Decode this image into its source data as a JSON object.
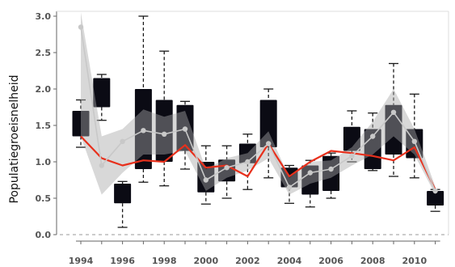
{
  "chart_data": {
    "type": "boxplot",
    "ylabel": "Populatiegroeisnelheid",
    "xlabel": "",
    "title": "",
    "ylim": [
      0,
      3.0
    ],
    "yticks": [
      "0.0",
      "0.5",
      "1.0",
      "1.5",
      "2.0",
      "2.5",
      "3.0"
    ],
    "xticks": [
      "1994",
      "1996",
      "1998",
      "2000",
      "2002",
      "2004",
      "2006",
      "2008",
      "2010"
    ],
    "grid": false,
    "years": [
      1994,
      1995,
      1996,
      1997,
      1998,
      1999,
      2000,
      2001,
      2002,
      2003,
      2004,
      2005,
      2006,
      2007,
      2008,
      2009,
      2010,
      2011
    ],
    "boxes": [
      {
        "year": 1994,
        "whisker_low": 1.2,
        "q1": 1.35,
        "q3": 1.7,
        "whisker_high": 1.85
      },
      {
        "year": 1995,
        "whisker_low": 1.57,
        "q1": 1.75,
        "q3": 2.15,
        "whisker_high": 2.2
      },
      {
        "year": 1996,
        "whisker_low": 0.1,
        "q1": 0.43,
        "q3": 0.7,
        "whisker_high": 0.73
      },
      {
        "year": 1997,
        "whisker_low": 0.72,
        "q1": 0.9,
        "q3": 2.0,
        "whisker_high": 3.0
      },
      {
        "year": 1998,
        "whisker_low": 0.67,
        "q1": 1.0,
        "q3": 1.85,
        "whisker_high": 2.52
      },
      {
        "year": 1999,
        "whisker_low": 0.9,
        "q1": 1.15,
        "q3": 1.78,
        "whisker_high": 1.83
      },
      {
        "year": 2000,
        "whisker_low": 0.42,
        "q1": 0.58,
        "q3": 1.0,
        "whisker_high": 1.22
      },
      {
        "year": 2001,
        "whisker_low": 0.5,
        "q1": 0.73,
        "q3": 1.03,
        "whisker_high": 1.22
      },
      {
        "year": 2002,
        "whisker_low": 0.62,
        "q1": 0.98,
        "q3": 1.25,
        "whisker_high": 1.38
      },
      {
        "year": 2003,
        "whisker_low": 0.78,
        "q1": 1.2,
        "q3": 1.85,
        "whisker_high": 2.0
      },
      {
        "year": 2004,
        "whisker_low": 0.43,
        "q1": 0.65,
        "q3": 0.92,
        "whisker_high": 0.95
      },
      {
        "year": 2005,
        "whisker_low": 0.38,
        "q1": 0.55,
        "q3": 0.95,
        "whisker_high": 1.02
      },
      {
        "year": 2006,
        "whisker_low": 0.5,
        "q1": 0.6,
        "q3": 1.08,
        "whisker_high": 1.12
      },
      {
        "year": 2007,
        "whisker_low": 1.0,
        "q1": 1.15,
        "q3": 1.48,
        "whisker_high": 1.7
      },
      {
        "year": 2008,
        "whisker_low": 0.88,
        "q1": 0.9,
        "q3": 1.45,
        "whisker_high": 1.67
      },
      {
        "year": 2009,
        "whisker_low": 0.8,
        "q1": 1.1,
        "q3": 1.78,
        "whisker_high": 2.35
      },
      {
        "year": 2010,
        "whisker_low": 0.78,
        "q1": 1.05,
        "q3": 1.45,
        "whisker_high": 1.93
      },
      {
        "year": 2011,
        "whisker_low": 0.32,
        "q1": 0.4,
        "q3": 0.6,
        "whisker_high": 0.62
      }
    ],
    "series": [
      {
        "kind": "line",
        "color": "#e8301c",
        "values": [
          1.35,
          1.05,
          0.95,
          1.02,
          1.0,
          1.23,
          0.92,
          0.95,
          0.8,
          1.25,
          0.8,
          1.0,
          1.15,
          1.12,
          1.08,
          1.02,
          1.2,
          0.62
        ]
      },
      {
        "kind": "line-markers",
        "color": "#c8c8c8",
        "values": [
          2.85,
          0.95,
          1.28,
          1.43,
          1.38,
          1.45,
          0.75,
          0.92,
          1.0,
          1.25,
          0.65,
          0.85,
          0.9,
          1.08,
          1.35,
          1.68,
          1.28,
          0.6
        ]
      }
    ],
    "band": {
      "color": "#d0d0d0",
      "lower": [
        1.35,
        0.55,
        0.85,
        1.1,
        1.1,
        1.15,
        0.6,
        0.78,
        0.88,
        1.05,
        0.55,
        0.7,
        0.78,
        0.95,
        1.1,
        1.35,
        1.1,
        0.55
      ],
      "upper": [
        3.05,
        1.35,
        1.45,
        1.72,
        1.62,
        1.7,
        0.9,
        1.05,
        1.12,
        1.42,
        0.78,
        1.0,
        1.02,
        1.2,
        1.55,
        2.0,
        1.45,
        0.66
      ]
    },
    "colors": {
      "box_fill": "#0b0b14",
      "whisker": "#1a1a1a",
      "axis": "#666666",
      "dashed_zero": "#999999"
    }
  }
}
